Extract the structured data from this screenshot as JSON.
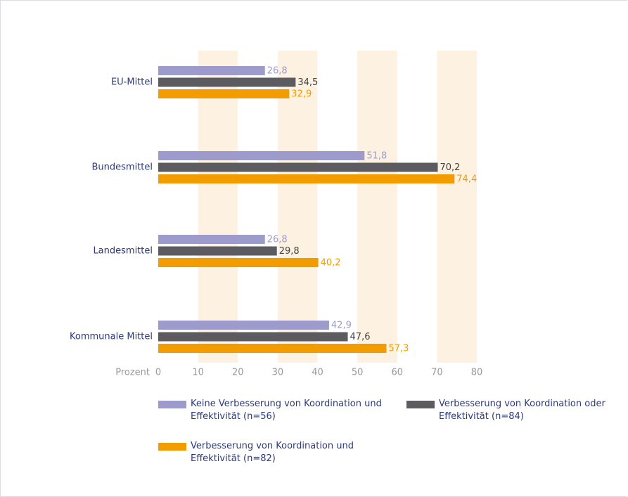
{
  "chart_data": {
    "type": "barh",
    "categories": [
      "EU-Mittel",
      "Bundesmittel",
      "Landesmittel",
      "Kommunale Mittel"
    ],
    "x_label": "Prozent",
    "series": [
      {
        "name": "Keine Verbesserung von Koordination und Effektivität (n=56)",
        "color": "#9c9bcc",
        "values": [
          26.8,
          51.8,
          26.8,
          42.9
        ],
        "value_labels": [
          "26,8",
          "51,8",
          "26,8",
          "42,9"
        ]
      },
      {
        "name": "Verbesserung von Koordination oder Effektivität (n=84)",
        "color": "#5c5c60",
        "values": [
          34.5,
          70.2,
          29.8,
          47.6
        ],
        "value_labels": [
          "34,5",
          "70,2",
          "29,8",
          "47,6"
        ]
      },
      {
        "name": "Verbesserung von Koordination und Effektivität (n=82)",
        "color": "#f39c00",
        "values": [
          32.9,
          74.4,
          40.2,
          57.3
        ],
        "value_labels": [
          "32,9",
          "74,4",
          "40,2",
          "57,3"
        ]
      }
    ],
    "xlim": [
      0,
      80
    ],
    "xticks": [
      0,
      10,
      20,
      30,
      40,
      50,
      60,
      70,
      80
    ],
    "band_color": "#fdf1e2"
  }
}
